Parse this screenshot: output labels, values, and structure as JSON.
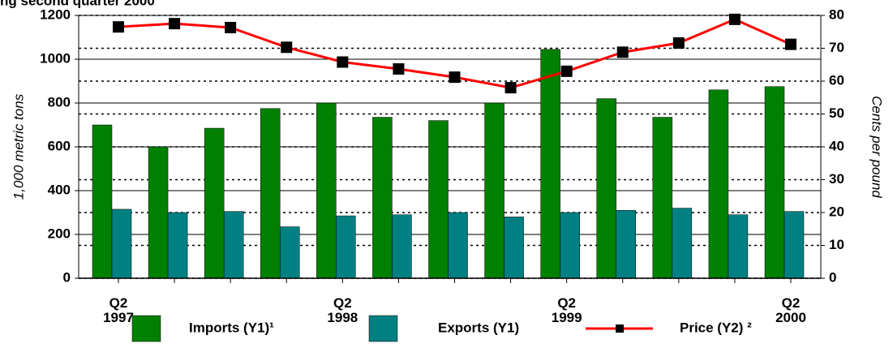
{
  "chart_data": {
    "type": "bar",
    "title": "ng second quarter 2000",
    "categories": [
      "Q2\n1997",
      null,
      null,
      null,
      "Q2\n1998",
      null,
      null,
      null,
      "Q2\n1999",
      null,
      null,
      null,
      "Q2\n2000"
    ],
    "series": [
      {
        "name": "Imports (Y1)¹",
        "color": "#008000",
        "type": "bar",
        "values": [
          700,
          600,
          685,
          775,
          800,
          735,
          720,
          800,
          1045,
          820,
          735,
          860,
          875
        ]
      },
      {
        "name": "Exports (Y1)",
        "color": "#008080",
        "type": "bar",
        "values": [
          315,
          300,
          305,
          235,
          285,
          290,
          300,
          280,
          300,
          310,
          320,
          290,
          305
        ]
      },
      {
        "name": "Price (Y2) ²",
        "color": "#ff0000",
        "type": "line",
        "axis": "y2",
        "values": [
          76.5,
          77.5,
          76.3,
          70.3,
          65.8,
          63.7,
          61.2,
          58,
          63,
          68.8,
          71.6,
          78.8,
          71.2
        ]
      }
    ],
    "ylabel": "1,000 metric tons",
    "y2label": "Cents per pound",
    "ylim": [
      0,
      1200
    ],
    "yticks": [
      0,
      200,
      400,
      600,
      800,
      1000,
      1200
    ],
    "y2lim": [
      0,
      80
    ],
    "y2ticks": [
      0,
      10,
      20,
      30,
      40,
      50,
      60,
      70,
      80
    ],
    "grid": true,
    "legend": "bottom"
  }
}
